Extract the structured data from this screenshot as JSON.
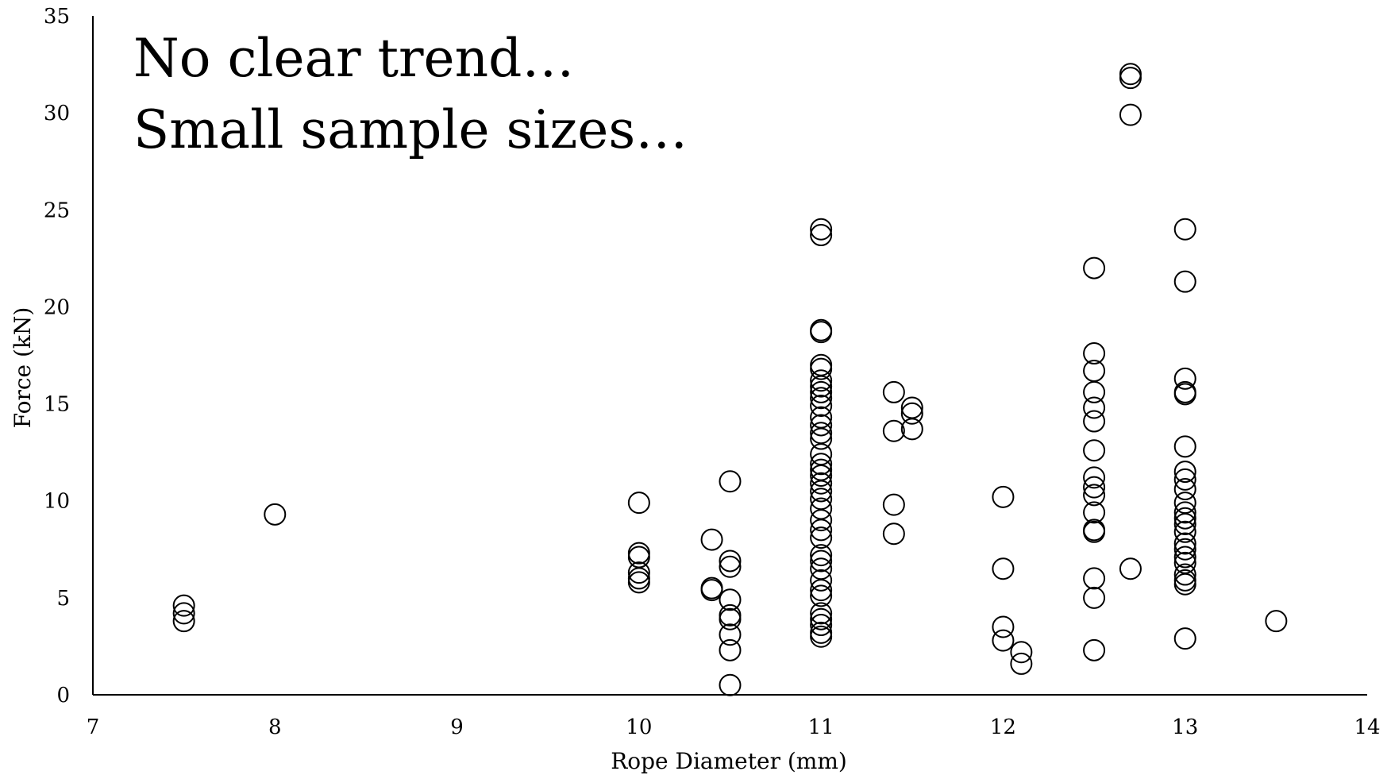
{
  "chart_data": {
    "type": "scatter",
    "title": "",
    "xlabel": "Rope Diameter (mm)",
    "ylabel": "Force (kN)",
    "xlim": [
      7,
      14
    ],
    "ylim": [
      0,
      35
    ],
    "xticks": [
      7,
      8,
      9,
      10,
      11,
      12,
      13,
      14
    ],
    "yticks": [
      0,
      5,
      10,
      15,
      20,
      25,
      30,
      35
    ],
    "grid": false,
    "annotations": [
      "No clear trend…",
      "Small sample sizes…"
    ],
    "marker": "open-circle",
    "points": [
      {
        "x": 7.5,
        "y": 4.6
      },
      {
        "x": 7.5,
        "y": 4.2
      },
      {
        "x": 7.5,
        "y": 3.8
      },
      {
        "x": 8.0,
        "y": 9.3
      },
      {
        "x": 10.0,
        "y": 9.9
      },
      {
        "x": 10.0,
        "y": 7.3
      },
      {
        "x": 10.0,
        "y": 7.1
      },
      {
        "x": 10.0,
        "y": 6.3
      },
      {
        "x": 10.0,
        "y": 6.0
      },
      {
        "x": 10.0,
        "y": 5.8
      },
      {
        "x": 10.4,
        "y": 8.0
      },
      {
        "x": 10.4,
        "y": 5.5
      },
      {
        "x": 10.4,
        "y": 5.4
      },
      {
        "x": 10.5,
        "y": 11.0
      },
      {
        "x": 10.5,
        "y": 6.9
      },
      {
        "x": 10.5,
        "y": 6.6
      },
      {
        "x": 10.5,
        "y": 4.9
      },
      {
        "x": 10.5,
        "y": 4.1
      },
      {
        "x": 10.5,
        "y": 3.9
      },
      {
        "x": 10.5,
        "y": 3.1
      },
      {
        "x": 10.5,
        "y": 2.3
      },
      {
        "x": 10.5,
        "y": 0.5
      },
      {
        "x": 11.0,
        "y": 24.0
      },
      {
        "x": 11.0,
        "y": 23.7
      },
      {
        "x": 11.0,
        "y": 18.8
      },
      {
        "x": 11.0,
        "y": 18.7
      },
      {
        "x": 11.0,
        "y": 17.0
      },
      {
        "x": 11.0,
        "y": 16.8
      },
      {
        "x": 11.0,
        "y": 16.2
      },
      {
        "x": 11.0,
        "y": 15.9
      },
      {
        "x": 11.0,
        "y": 15.6
      },
      {
        "x": 11.0,
        "y": 15.3
      },
      {
        "x": 11.0,
        "y": 14.9
      },
      {
        "x": 11.0,
        "y": 14.3
      },
      {
        "x": 11.0,
        "y": 13.9
      },
      {
        "x": 11.0,
        "y": 13.5
      },
      {
        "x": 11.0,
        "y": 13.2
      },
      {
        "x": 11.0,
        "y": 12.4
      },
      {
        "x": 11.0,
        "y": 11.9
      },
      {
        "x": 11.0,
        "y": 11.6
      },
      {
        "x": 11.0,
        "y": 11.3
      },
      {
        "x": 11.0,
        "y": 10.9
      },
      {
        "x": 11.0,
        "y": 10.5
      },
      {
        "x": 11.0,
        "y": 10.1
      },
      {
        "x": 11.0,
        "y": 9.6
      },
      {
        "x": 11.0,
        "y": 9.0
      },
      {
        "x": 11.0,
        "y": 8.5
      },
      {
        "x": 11.0,
        "y": 8.1
      },
      {
        "x": 11.0,
        "y": 7.2
      },
      {
        "x": 11.0,
        "y": 6.9
      },
      {
        "x": 11.0,
        "y": 6.5
      },
      {
        "x": 11.0,
        "y": 5.9
      },
      {
        "x": 11.0,
        "y": 5.4
      },
      {
        "x": 11.0,
        "y": 5.1
      },
      {
        "x": 11.0,
        "y": 4.2
      },
      {
        "x": 11.0,
        "y": 3.9
      },
      {
        "x": 11.0,
        "y": 3.6
      },
      {
        "x": 11.0,
        "y": 3.2
      },
      {
        "x": 11.0,
        "y": 3.0
      },
      {
        "x": 11.4,
        "y": 15.6
      },
      {
        "x": 11.4,
        "y": 13.6
      },
      {
        "x": 11.4,
        "y": 9.8
      },
      {
        "x": 11.4,
        "y": 8.3
      },
      {
        "x": 11.5,
        "y": 14.8
      },
      {
        "x": 11.5,
        "y": 14.5
      },
      {
        "x": 11.5,
        "y": 13.7
      },
      {
        "x": 12.0,
        "y": 10.2
      },
      {
        "x": 12.0,
        "y": 6.5
      },
      {
        "x": 12.0,
        "y": 3.5
      },
      {
        "x": 12.0,
        "y": 2.8
      },
      {
        "x": 12.1,
        "y": 2.2
      },
      {
        "x": 12.1,
        "y": 1.6
      },
      {
        "x": 12.5,
        "y": 22.0
      },
      {
        "x": 12.5,
        "y": 17.6
      },
      {
        "x": 12.5,
        "y": 16.7
      },
      {
        "x": 12.5,
        "y": 15.6
      },
      {
        "x": 12.5,
        "y": 14.8
      },
      {
        "x": 12.5,
        "y": 14.1
      },
      {
        "x": 12.5,
        "y": 12.6
      },
      {
        "x": 12.5,
        "y": 11.2
      },
      {
        "x": 12.5,
        "y": 10.7
      },
      {
        "x": 12.5,
        "y": 10.3
      },
      {
        "x": 12.5,
        "y": 9.4
      },
      {
        "x": 12.5,
        "y": 8.5
      },
      {
        "x": 12.5,
        "y": 8.4
      },
      {
        "x": 12.5,
        "y": 6.0
      },
      {
        "x": 12.5,
        "y": 5.0
      },
      {
        "x": 12.5,
        "y": 2.3
      },
      {
        "x": 12.7,
        "y": 32.0
      },
      {
        "x": 12.7,
        "y": 31.8
      },
      {
        "x": 12.7,
        "y": 29.9
      },
      {
        "x": 12.7,
        "y": 6.5
      },
      {
        "x": 13.0,
        "y": 24.0
      },
      {
        "x": 13.0,
        "y": 21.3
      },
      {
        "x": 13.0,
        "y": 16.3
      },
      {
        "x": 13.0,
        "y": 15.6
      },
      {
        "x": 13.0,
        "y": 15.5
      },
      {
        "x": 13.0,
        "y": 12.8
      },
      {
        "x": 13.0,
        "y": 11.5
      },
      {
        "x": 13.0,
        "y": 11.1
      },
      {
        "x": 13.0,
        "y": 10.6
      },
      {
        "x": 13.0,
        "y": 9.9
      },
      {
        "x": 13.0,
        "y": 9.4
      },
      {
        "x": 13.0,
        "y": 9.1
      },
      {
        "x": 13.0,
        "y": 8.8
      },
      {
        "x": 13.0,
        "y": 8.4
      },
      {
        "x": 13.0,
        "y": 7.8
      },
      {
        "x": 13.0,
        "y": 7.5
      },
      {
        "x": 13.0,
        "y": 7.1
      },
      {
        "x": 13.0,
        "y": 6.8
      },
      {
        "x": 13.0,
        "y": 6.2
      },
      {
        "x": 13.0,
        "y": 5.9
      },
      {
        "x": 13.0,
        "y": 5.7
      },
      {
        "x": 13.0,
        "y": 2.9
      },
      {
        "x": 13.5,
        "y": 3.8
      }
    ]
  }
}
